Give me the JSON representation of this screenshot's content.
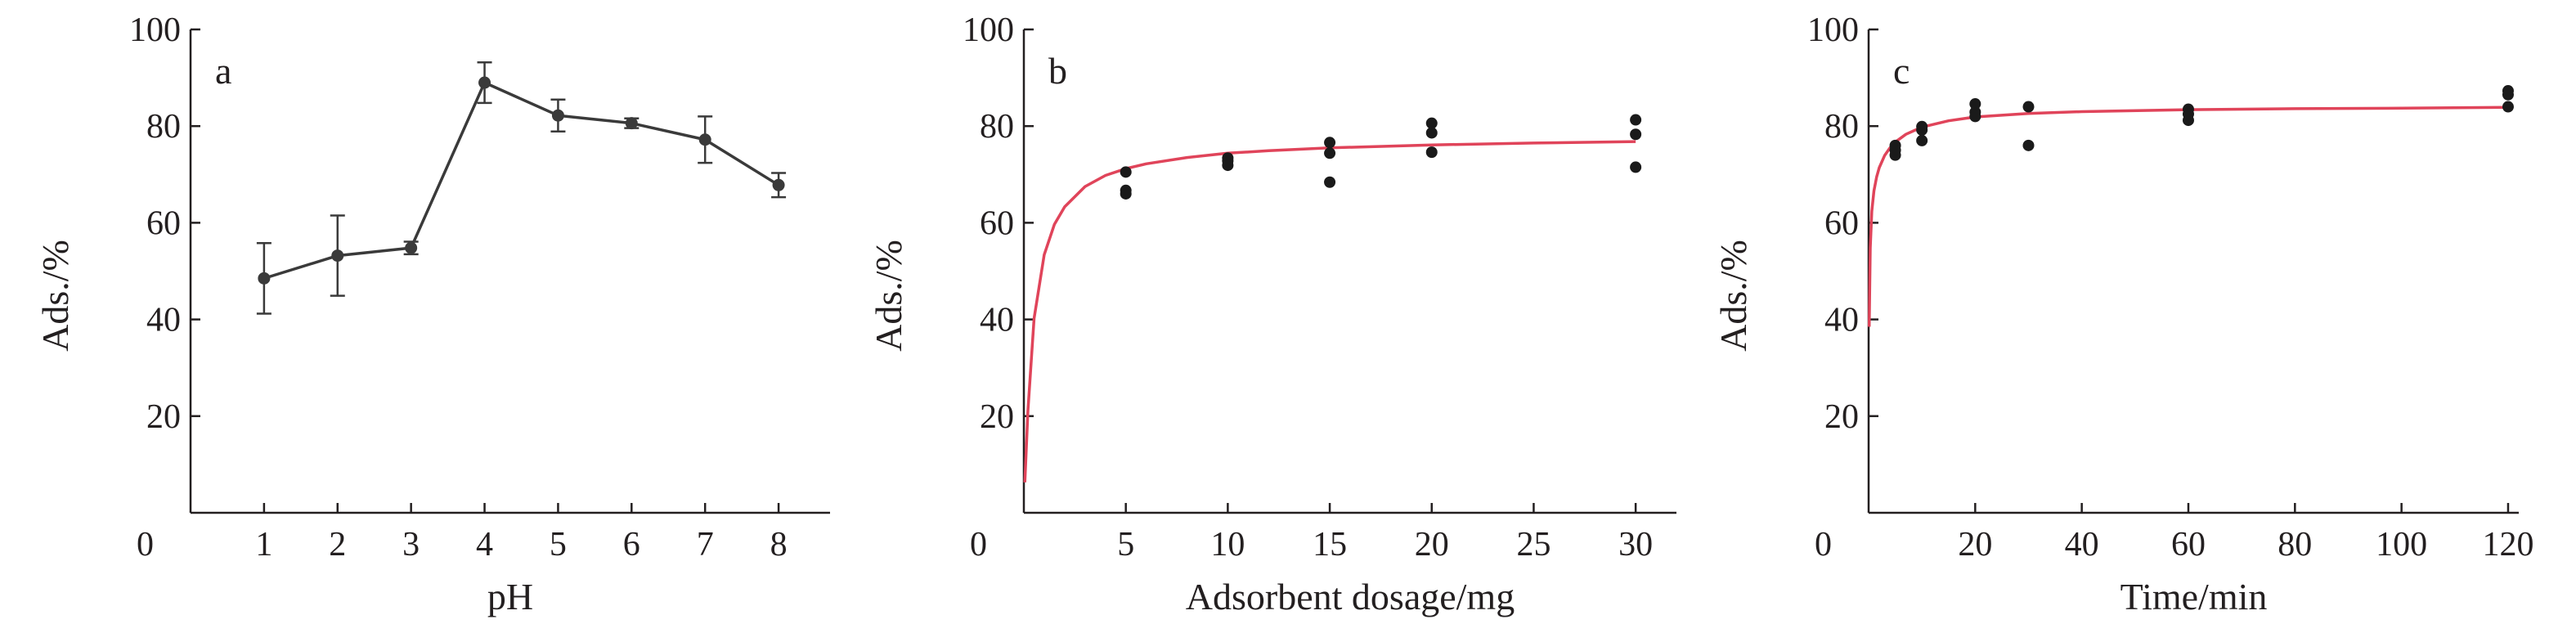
{
  "chart_data": [
    {
      "type": "line",
      "panel_label": "a",
      "xlabel": "pH",
      "ylabel": "Ads./%",
      "xlim": [
        0,
        8.7
      ],
      "ylim": [
        0,
        100
      ],
      "x_ticks": [
        1,
        2,
        3,
        4,
        5,
        6,
        7,
        8
      ],
      "y_ticks": [
        20,
        40,
        60,
        80,
        100
      ],
      "origin_label": "0",
      "error_bars": true,
      "series": [
        {
          "x": [
            1,
            2,
            3,
            4,
            5,
            6,
            7,
            8
          ],
          "values": [
            48.5,
            53.2,
            54.8,
            89.0,
            82.2,
            80.6,
            77.2,
            67.8
          ],
          "error": [
            7.3,
            8.3,
            1.3,
            4.2,
            3.3,
            1.0,
            4.8,
            2.5
          ],
          "color": "#3a3a3a"
        }
      ]
    },
    {
      "type": "scatter",
      "panel_label": "b",
      "xlabel": "Adsorbent dosage/mg",
      "ylabel": "Ads./%",
      "xlim": [
        0,
        32
      ],
      "ylim": [
        0,
        100
      ],
      "x_ticks": [
        5,
        10,
        15,
        20,
        25,
        30
      ],
      "y_ticks": [
        20,
        40,
        60,
        80,
        100
      ],
      "origin_label": "0",
      "points": {
        "x": [
          5,
          5,
          5,
          10,
          10,
          10,
          15,
          15,
          15,
          20,
          20,
          20,
          30,
          30,
          30
        ],
        "y": [
          70.5,
          66.7,
          66.0,
          73.4,
          72.8,
          71.9,
          76.6,
          74.4,
          68.4,
          80.6,
          78.6,
          74.6,
          81.3,
          78.3,
          71.5
        ],
        "color": "#1a1a1a"
      },
      "fit_curve": {
        "x": [
          0.05,
          0.2,
          0.5,
          1,
          1.5,
          2,
          3,
          4,
          5,
          6,
          8,
          10,
          12,
          15,
          20,
          25,
          30
        ],
        "y": [
          6.3,
          21.2,
          40.2,
          53.4,
          59.7,
          63.3,
          67.5,
          69.8,
          71.2,
          72.2,
          73.5,
          74.4,
          74.9,
          75.5,
          76.1,
          76.5,
          76.8
        ],
        "color": "#e0445a"
      }
    },
    {
      "type": "scatter",
      "panel_label": "c",
      "xlabel": "Time/min",
      "ylabel": "Ads./%",
      "xlim": [
        0,
        122
      ],
      "ylim": [
        0,
        100
      ],
      "x_ticks": [
        20,
        40,
        60,
        80,
        100,
        120
      ],
      "y_ticks": [
        20,
        40,
        60,
        80,
        100
      ],
      "origin_label": "0",
      "points": {
        "x": [
          5,
          5,
          5,
          10,
          10,
          10,
          20,
          20,
          20,
          30,
          30,
          60,
          60,
          60,
          120,
          120,
          120
        ],
        "y": [
          76.0,
          75.0,
          74.0,
          79.9,
          79.2,
          77.0,
          84.6,
          82.9,
          82.0,
          84.0,
          76.0,
          83.5,
          82.5,
          81.2,
          87.3,
          86.5,
          84.0
        ],
        "color": "#1a1a1a"
      },
      "fit_curve": {
        "x": [
          0.1,
          0.3,
          0.6,
          1,
          1.5,
          2,
          3,
          4,
          5,
          7,
          10,
          15,
          20,
          30,
          40,
          60,
          80,
          100,
          120
        ],
        "y": [
          38.5,
          54.8,
          62.4,
          66.6,
          69.5,
          71.4,
          73.9,
          75.5,
          76.7,
          78.3,
          79.8,
          81.1,
          81.9,
          82.6,
          83.0,
          83.4,
          83.6,
          83.7,
          83.9
        ],
        "color": "#e0445a"
      }
    }
  ]
}
